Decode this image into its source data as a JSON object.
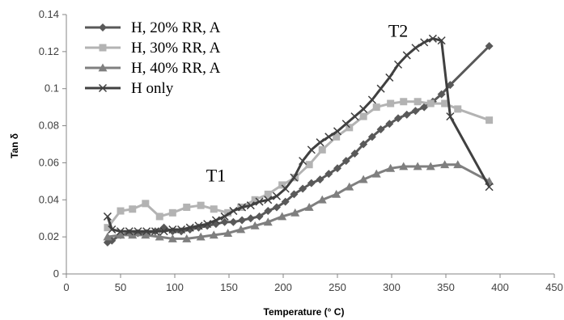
{
  "chart_data": {
    "type": "line",
    "xlabel": "Temperature (° C)",
    "ylabel": "Tan δ",
    "xlim": [
      0,
      450
    ],
    "ylim": [
      0,
      0.14
    ],
    "x_ticks": [
      "0",
      "50",
      "100",
      "150",
      "200",
      "250",
      "300",
      "350",
      "400",
      "450"
    ],
    "y_ticks": [
      "0",
      "0.02",
      "0.04",
      "0.06",
      "0.08",
      "0.1",
      "0.12",
      "0.14"
    ],
    "grid": false,
    "legend_position": "top-left",
    "annotations": [
      {
        "text": "T1",
        "x": 138,
        "y": 0.05
      },
      {
        "text": "T2",
        "x": 306,
        "y": 0.128
      }
    ],
    "series": [
      {
        "name": "H, 20% RR, A",
        "color": "#595959",
        "marker": "diamond",
        "x": [
          38,
          42,
          50,
          58,
          66,
          74,
          82,
          90,
          98,
          106,
          114,
          122,
          130,
          138,
          146,
          154,
          162,
          170,
          178,
          186,
          194,
          202,
          210,
          218,
          226,
          234,
          242,
          250,
          258,
          266,
          274,
          282,
          290,
          298,
          306,
          314,
          322,
          330,
          338,
          346,
          354,
          390
        ],
        "values": [
          0.017,
          0.018,
          0.021,
          0.022,
          0.022,
          0.022,
          0.023,
          0.025,
          0.023,
          0.023,
          0.024,
          0.025,
          0.026,
          0.027,
          0.028,
          0.028,
          0.029,
          0.03,
          0.031,
          0.034,
          0.036,
          0.039,
          0.043,
          0.046,
          0.049,
          0.051,
          0.054,
          0.057,
          0.061,
          0.065,
          0.07,
          0.074,
          0.078,
          0.081,
          0.084,
          0.086,
          0.088,
          0.09,
          0.093,
          0.097,
          0.102,
          0.123
        ]
      },
      {
        "name": "H, 30% RR, A",
        "color": "#b3b3b3",
        "marker": "square",
        "x": [
          38,
          50,
          61,
          73,
          86,
          98,
          111,
          124,
          136,
          149,
          161,
          174,
          186,
          199,
          211,
          224,
          236,
          249,
          261,
          274,
          286,
          299,
          311,
          324,
          336,
          349,
          361,
          390
        ],
        "values": [
          0.025,
          0.034,
          0.035,
          0.038,
          0.031,
          0.033,
          0.036,
          0.037,
          0.035,
          0.033,
          0.036,
          0.04,
          0.043,
          0.048,
          0.052,
          0.059,
          0.067,
          0.074,
          0.079,
          0.085,
          0.09,
          0.092,
          0.093,
          0.093,
          0.092,
          0.092,
          0.089,
          0.083
        ]
      },
      {
        "name": "H, 40% RR, A",
        "color": "#7f7f7f",
        "marker": "triangle",
        "x": [
          38,
          50,
          61,
          73,
          86,
          98,
          111,
          124,
          136,
          149,
          161,
          174,
          186,
          199,
          211,
          224,
          236,
          249,
          261,
          274,
          286,
          299,
          311,
          324,
          336,
          349,
          361,
          390
        ],
        "values": [
          0.02,
          0.021,
          0.021,
          0.021,
          0.02,
          0.019,
          0.019,
          0.02,
          0.021,
          0.022,
          0.024,
          0.026,
          0.028,
          0.031,
          0.033,
          0.036,
          0.04,
          0.043,
          0.047,
          0.051,
          0.054,
          0.057,
          0.058,
          0.058,
          0.058,
          0.059,
          0.059,
          0.05
        ]
      },
      {
        "name": "H only",
        "color": "#404040",
        "marker": "x",
        "x": [
          38,
          42,
          50,
          58,
          66,
          74,
          82,
          90,
          98,
          106,
          114,
          122,
          130,
          138,
          146,
          154,
          162,
          170,
          178,
          186,
          194,
          202,
          210,
          218,
          226,
          234,
          242,
          250,
          258,
          266,
          274,
          282,
          290,
          298,
          306,
          314,
          322,
          330,
          338,
          346,
          354,
          390
        ],
        "values": [
          0.031,
          0.024,
          0.023,
          0.023,
          0.023,
          0.023,
          0.023,
          0.023,
          0.024,
          0.024,
          0.025,
          0.026,
          0.027,
          0.029,
          0.031,
          0.034,
          0.036,
          0.037,
          0.039,
          0.04,
          0.042,
          0.046,
          0.052,
          0.061,
          0.067,
          0.071,
          0.074,
          0.077,
          0.081,
          0.085,
          0.089,
          0.094,
          0.1,
          0.106,
          0.113,
          0.118,
          0.122,
          0.125,
          0.127,
          0.126,
          0.085,
          0.047
        ]
      }
    ]
  }
}
